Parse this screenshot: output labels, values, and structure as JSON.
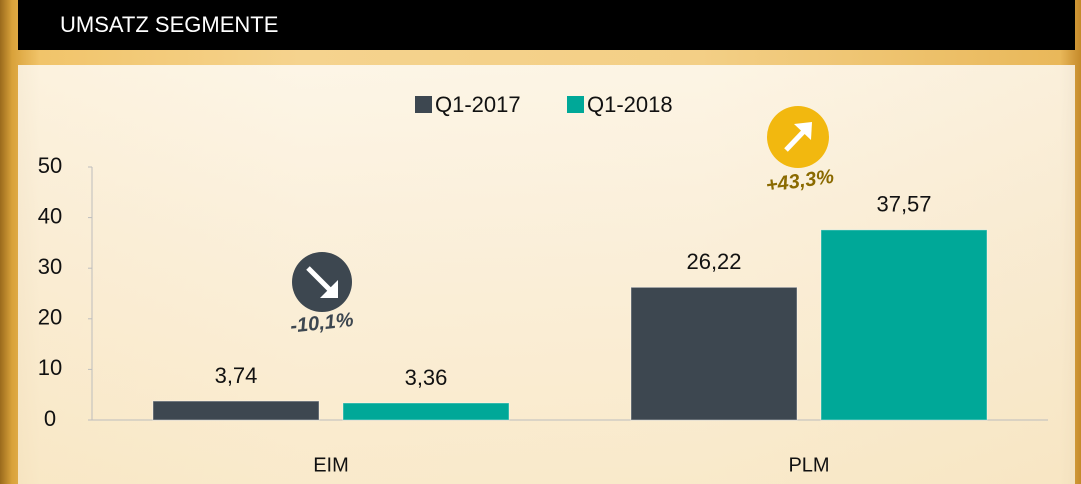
{
  "chart_data": {
    "type": "bar",
    "title": "UMSATZ SEGMENTE",
    "categories": [
      "EIM",
      "PLM"
    ],
    "series": [
      {
        "name": "Q1-2017",
        "color": "#3d4750",
        "values": [
          3.74,
          26.22
        ],
        "value_labels": [
          "3,74",
          "26,22"
        ]
      },
      {
        "name": "Q1-2018",
        "color": "#00a898",
        "values": [
          3.36,
          37.57
        ],
        "value_labels": [
          "3,36",
          "37,57"
        ]
      }
    ],
    "ylim": [
      0,
      50
    ],
    "yticks": [
      0,
      10,
      20,
      30,
      40,
      50
    ],
    "legend": "top",
    "annotations": [
      "-10,1%",
      "+43,3%"
    ]
  }
}
